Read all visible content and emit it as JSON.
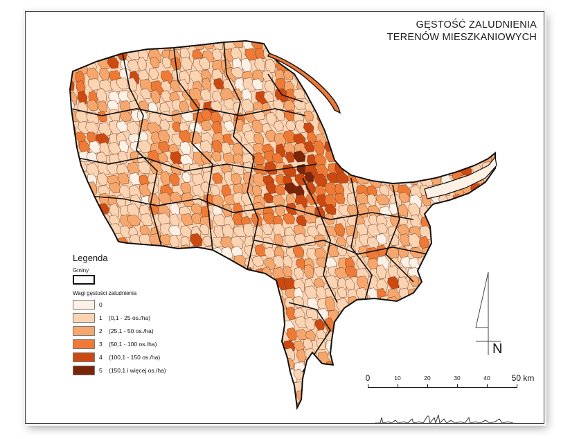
{
  "title": {
    "line1": "GĘSTOŚĆ ZALUDNIENIA",
    "line2": "TERENÓW MIESZKANIOWYCH"
  },
  "legend": {
    "heading": "Legenda",
    "gminy_label": "Gminy",
    "weights_label": "Wagi gęstości zaludnienia",
    "classes": [
      {
        "num": "0",
        "text": "",
        "color": "#fdf0e4"
      },
      {
        "num": "1",
        "text": "(0,1 - 25 os./ha)",
        "color": "#fbd4b4"
      },
      {
        "num": "2",
        "text": "(25,1 - 50 os./ha)",
        "color": "#f6a76d"
      },
      {
        "num": "3",
        "text": "(50,1 - 100 os./ha)",
        "color": "#ee7a35"
      },
      {
        "num": "4",
        "text": "(100,1 - 150 os./ha)",
        "color": "#cc4a12"
      },
      {
        "num": "5",
        "text": "(150,1 i więcej os./ha)",
        "color": "#7a250a"
      }
    ]
  },
  "north_arrow": {
    "label": "N"
  },
  "scale_bar": {
    "labels": [
      "0",
      "10",
      "20",
      "30",
      "40",
      "50 km"
    ]
  },
  "colors": {
    "boundary": "#111111",
    "sea_inlet": "#ffffff"
  }
}
